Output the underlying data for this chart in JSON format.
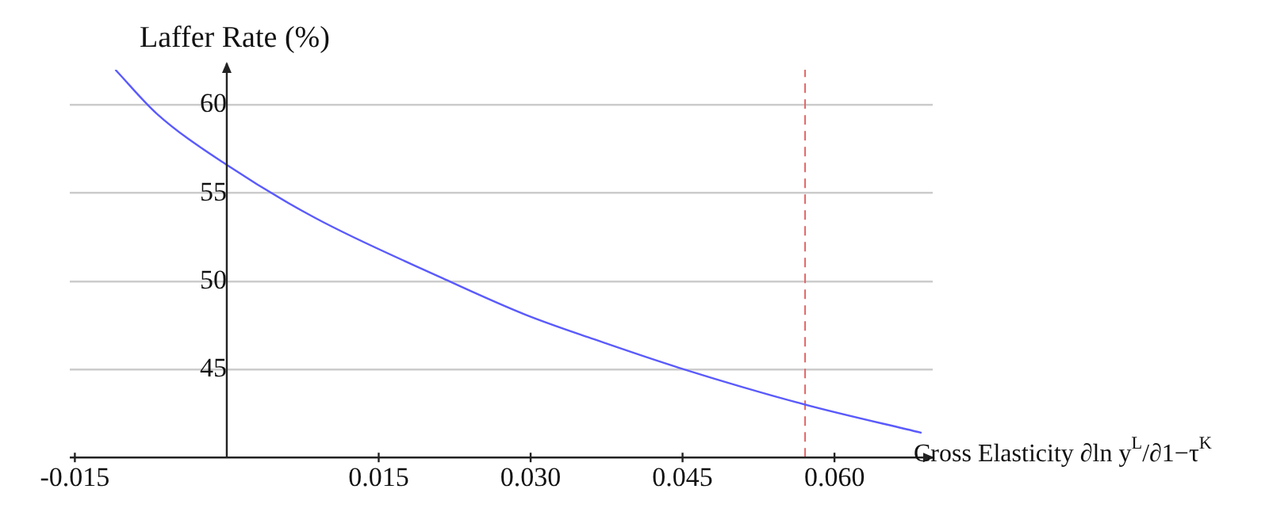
{
  "chart_data": {
    "type": "line",
    "xlabel": "Cross Elasticity ∂ln y$^{L}$/∂1−τ$^{K}$",
    "ylabel": "Laffer Rate (%)",
    "xlim": [
      -0.0155,
      0.0697
    ],
    "ylim": [
      40,
      62
    ],
    "xticks": [
      {
        "value": -0.015,
        "label": "-0.015"
      },
      {
        "value": 0.015,
        "label": "0.015"
      },
      {
        "value": 0.03,
        "label": "0.030"
      },
      {
        "value": 0.045,
        "label": "0.045"
      },
      {
        "value": 0.06,
        "label": "0.060"
      }
    ],
    "yticks": [
      45,
      50,
      55,
      60
    ],
    "grid": "y",
    "marker": "none",
    "line_style": "solid",
    "series": [
      {
        "color": "#5a5aff",
        "x": [
          -0.011,
          -0.0069,
          0,
          0.0087,
          0.0212,
          0.0295,
          0.0363,
          0.0446,
          0.0571,
          0.0686
        ],
        "values": [
          62.0,
          59.5,
          56.6,
          53.6,
          50.2,
          48.1,
          46.7,
          45.1,
          43.0,
          41.4
        ]
      }
    ],
    "ref_lines": [
      {
        "axis": "x",
        "value": 0.0571,
        "color": "#e06666",
        "line_style": "dashed"
      }
    ]
  }
}
